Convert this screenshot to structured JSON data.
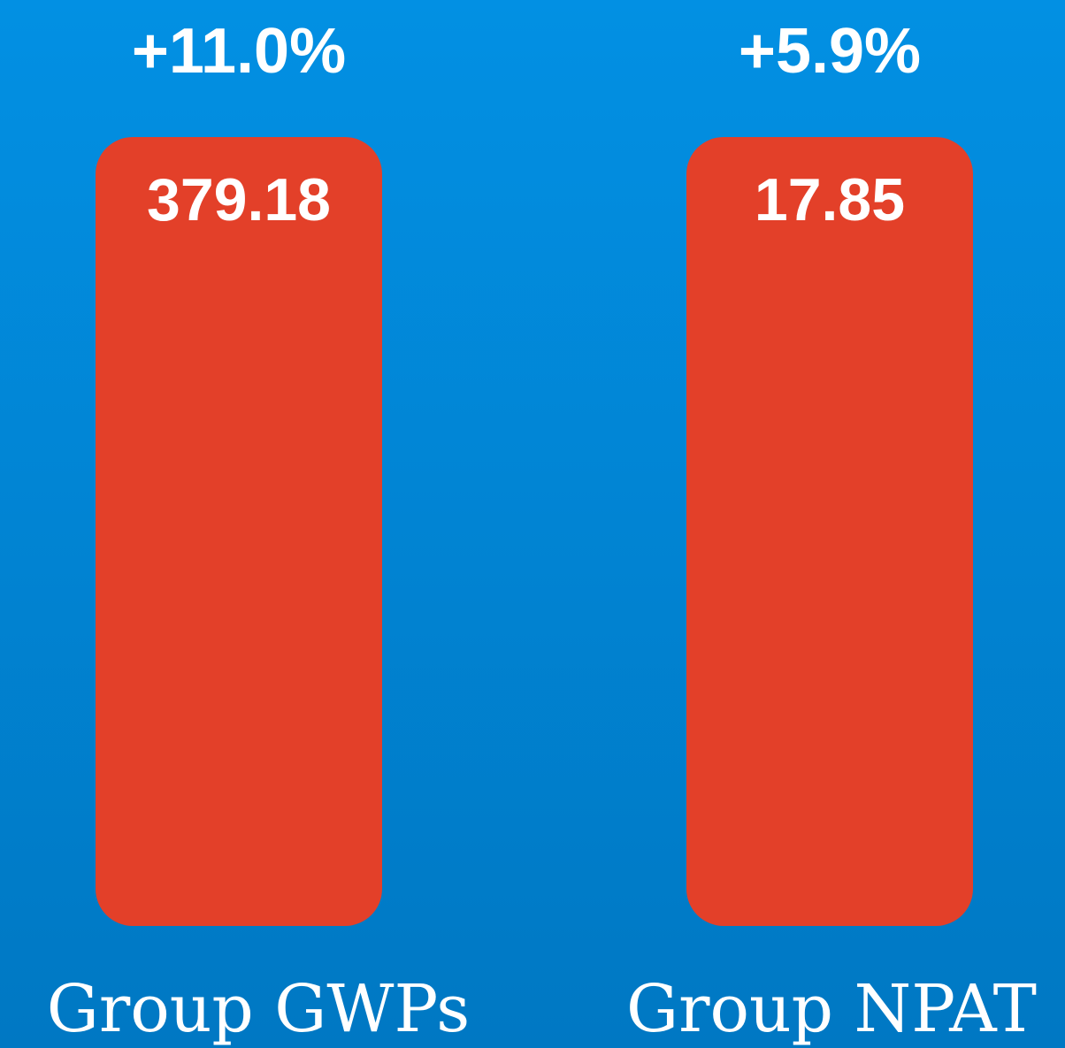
{
  "items": [
    {
      "change": "+11.0%",
      "value": 379.18,
      "label": "Group GWPs"
    },
    {
      "change": "+5.9%",
      "value": 17.85,
      "label": "Group NPAT"
    }
  ]
}
